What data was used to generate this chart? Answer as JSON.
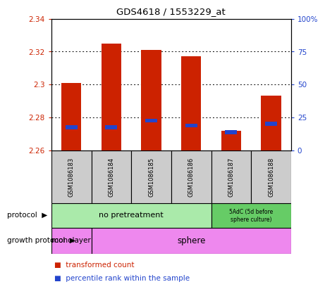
{
  "title": "GDS4618 / 1553229_at",
  "samples": [
    "GSM1086183",
    "GSM1086184",
    "GSM1086185",
    "GSM1086186",
    "GSM1086187",
    "GSM1086188"
  ],
  "bar_bottoms": [
    2.26,
    2.26,
    2.26,
    2.26,
    2.26,
    2.26
  ],
  "bar_tops": [
    2.301,
    2.325,
    2.321,
    2.317,
    2.272,
    2.293
  ],
  "blue_values": [
    2.274,
    2.274,
    2.278,
    2.275,
    2.271,
    2.276
  ],
  "ylim": [
    2.26,
    2.34
  ],
  "yticks_left": [
    2.26,
    2.28,
    2.3,
    2.32,
    2.34
  ],
  "yticks_right": [
    0,
    25,
    50,
    75,
    100
  ],
  "ytick_labels_right": [
    "0",
    "25",
    "50",
    "75",
    "100%"
  ],
  "bar_color": "#cc2200",
  "blue_color": "#2244cc",
  "background_color": "#ffffff",
  "plot_bg": "#ffffff",
  "protocol_green_light": "#aaeaaa",
  "protocol_green_dark": "#66cc66",
  "growth_pink": "#ee88ee",
  "label_color_left": "#cc2200",
  "label_color_right": "#2244cc",
  "gray_box": "#cccccc",
  "bar_width": 0.5
}
